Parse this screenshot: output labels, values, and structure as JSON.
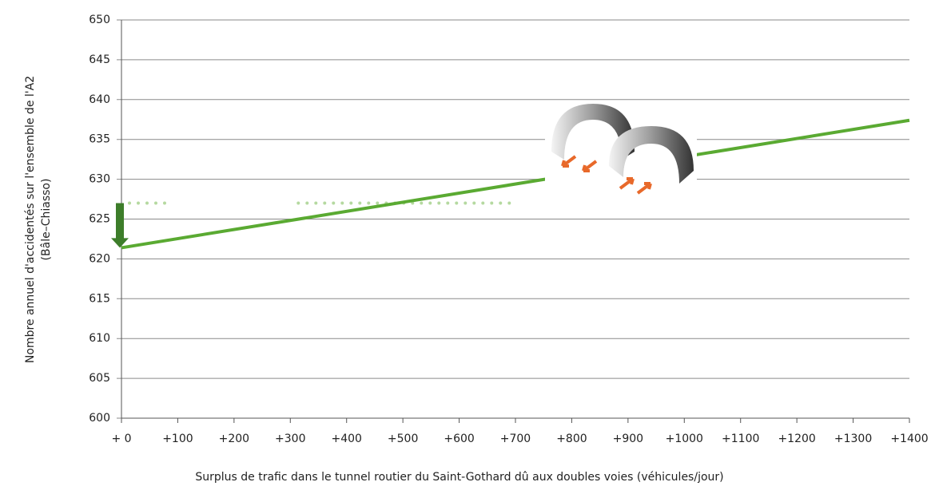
{
  "chart_data": {
    "type": "line",
    "ylabel": [
      "Nombre annuel d'accidentés sur l'ensemble de l'A2",
      "(Bâle–Chiasso)"
    ],
    "xlabel": "Surplus de trafic dans le tunnel routier du Saint-Gothard dû aux doubles voies (véhicules/jour)",
    "x": [
      0,
      1400
    ],
    "series": [
      {
        "color": "#5aaa32",
        "values": [
          621.4,
          637.4
        ]
      }
    ],
    "reference_lines": [
      {
        "y": 627,
        "x": [
          0,
          90
        ],
        "color": "#b5d9a0"
      },
      {
        "y": 627,
        "x": [
          300,
          690
        ],
        "color": "#b5d9a0"
      }
    ],
    "arrow_color": "#3d7d2a",
    "xlim": [
      0,
      1400
    ],
    "xticks": [
      {
        "value": 0,
        "label": "+ 0"
      },
      {
        "value": 100,
        "label": "+100"
      },
      {
        "value": 200,
        "label": "+200"
      },
      {
        "value": 300,
        "label": "+300"
      },
      {
        "value": 400,
        "label": "+400"
      },
      {
        "value": 500,
        "label": "+500"
      },
      {
        "value": 600,
        "label": "+600"
      },
      {
        "value": 700,
        "label": "+700"
      },
      {
        "value": 800,
        "label": "+800"
      },
      {
        "value": 900,
        "label": "+900"
      },
      {
        "value": 1000,
        "label": "+1000"
      },
      {
        "value": 1100,
        "label": "+1100"
      },
      {
        "value": 1200,
        "label": "+1200"
      },
      {
        "value": 1300,
        "label": "+1300"
      },
      {
        "value": 1400,
        "label": "+1400"
      }
    ],
    "ylim": [
      600,
      650
    ],
    "yticks": [
      600,
      605,
      610,
      615,
      620,
      625,
      630,
      635,
      640,
      645,
      650
    ],
    "grid": true
  }
}
